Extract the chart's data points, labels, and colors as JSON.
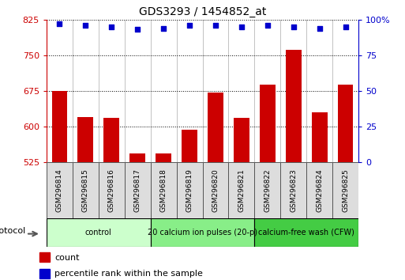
{
  "title": "GDS3293 / 1454852_at",
  "samples": [
    "GSM296814",
    "GSM296815",
    "GSM296816",
    "GSM296817",
    "GSM296818",
    "GSM296819",
    "GSM296820",
    "GSM296821",
    "GSM296822",
    "GSM296823",
    "GSM296824",
    "GSM296825"
  ],
  "counts": [
    675,
    620,
    618,
    543,
    543,
    593,
    672,
    618,
    688,
    762,
    630,
    688
  ],
  "percentile_ranks": [
    97,
    96,
    95,
    93,
    94,
    96,
    96,
    95,
    96,
    95,
    94,
    95
  ],
  "ylim_left": [
    525,
    825
  ],
  "ylim_right": [
    0,
    100
  ],
  "yticks_left": [
    525,
    600,
    675,
    750,
    825
  ],
  "yticks_right": [
    0,
    25,
    50,
    75,
    100
  ],
  "bar_color": "#cc0000",
  "dot_color": "#0000cc",
  "bg_color": "#ffffff",
  "group_colors": [
    "#ccffcc",
    "#88ee88",
    "#44cc44"
  ],
  "group_labels": [
    "control",
    "20 calcium ion pulses (20-p)",
    "calcium-free wash (CFW)"
  ],
  "group_ranges": [
    [
      0,
      3
    ],
    [
      4,
      7
    ],
    [
      8,
      11
    ]
  ],
  "legend_count_color": "#cc0000",
  "legend_pct_color": "#0000cc"
}
